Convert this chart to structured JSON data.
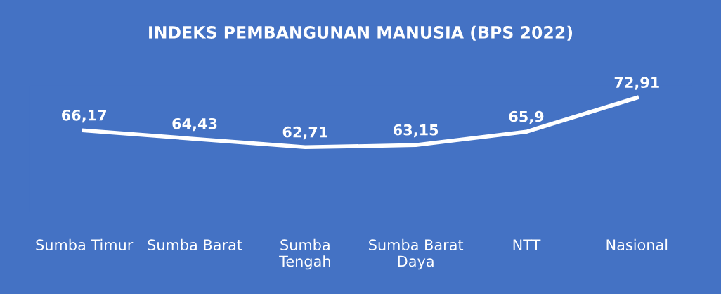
{
  "chart_data": {
    "type": "line",
    "title": "INDEKS PEMBANGUNAN MANUSIA (BPS 2022)",
    "categories": [
      "Sumba Timur",
      "Sumba Barat",
      "Sumba Tengah",
      "Sumba Barat Daya",
      "NTT",
      "Nasional"
    ],
    "series": [
      {
        "color": "#ffffff",
        "values": [
          66.17,
          64.43,
          62.71,
          63.15,
          65.9,
          72.91
        ],
        "value_labels": [
          "66,17",
          "64,43",
          "62,71",
          "63,15",
          "65,9",
          "72,91"
        ]
      }
    ],
    "grid": false,
    "line_style": "solid"
  }
}
